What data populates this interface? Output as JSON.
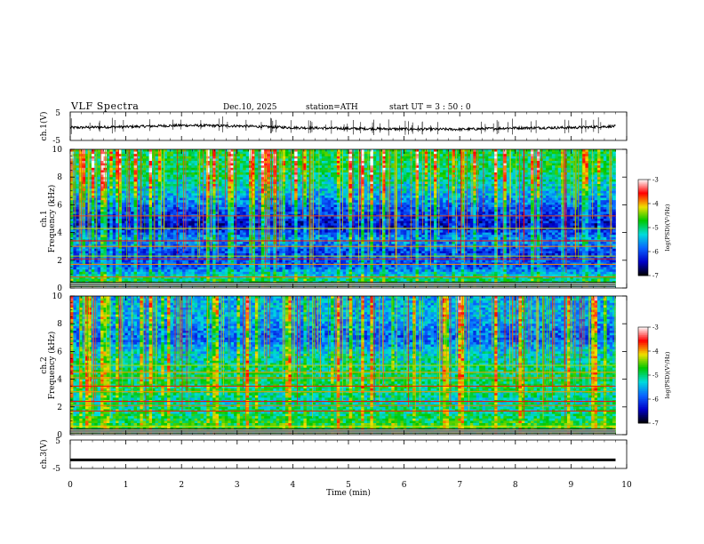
{
  "header": {
    "title": "VLF  Spectra",
    "date": "Dec.10, 2025",
    "station": "station=ATH",
    "start": "start  UT  =    3  : 50 : 0"
  },
  "panels": {
    "ch1_waveform": {
      "ylabel": "ch.1(V)",
      "yticks": [
        "5",
        "-5"
      ]
    },
    "ch1_spectrogram": {
      "ylabel_channel": "ch.1",
      "ylabel": "Frequency  (kHz)",
      "yticks": [
        "10",
        "8",
        "6",
        "4",
        "2",
        "0"
      ]
    },
    "ch2_spectrogram": {
      "ylabel_channel": "ch.2",
      "ylabel": "Frequency  (kHz)",
      "yticks": [
        "10",
        "8",
        "6",
        "4",
        "2",
        "0"
      ]
    },
    "ch3_waveform": {
      "ylabel": "ch.3(V)",
      "yticks": [
        "5",
        "-5"
      ]
    }
  },
  "xaxis": {
    "label": "Time  (min)",
    "ticks": [
      "0",
      "1",
      "2",
      "3",
      "4",
      "5",
      "6",
      "7",
      "8",
      "9",
      "10"
    ]
  },
  "colorbar": {
    "title": "log(PSD)(V²/Hz)",
    "ticks": [
      "-3",
      "-4",
      "-5",
      "-6",
      "-7"
    ],
    "colors": [
      "#000000",
      "#0000c8",
      "#0a64ff",
      "#00dcdc",
      "#00c800",
      "#f0e000",
      "#ff0000",
      "#ffffff"
    ]
  },
  "chart_data": [
    {
      "type": "line",
      "name": "ch.1(V)",
      "x": [
        0,
        1,
        2,
        3,
        4,
        5,
        6,
        7,
        8,
        9,
        9.8
      ],
      "y": [
        -0.5,
        -0.2,
        0.3,
        0.1,
        -0.5,
        -0.8,
        -1.0,
        -1.1,
        -0.6,
        -0.5,
        0.0
      ],
      "xlim": [
        0,
        10
      ],
      "ylim": [
        -5,
        5
      ],
      "data_end_min": 9.8
    },
    {
      "type": "heatmap",
      "name": "ch.1",
      "ylabel": "Frequency  (kHz)",
      "xlim": [
        0,
        10
      ],
      "ylim": [
        0,
        10
      ],
      "data_end_min": 9.8,
      "color_range": [
        -7,
        -3
      ],
      "bands_khz": [
        {
          "f": 8.5,
          "level": -4.9
        },
        {
          "f": 7.0,
          "level": -5.4
        },
        {
          "f": 5.8,
          "level": -5.9
        },
        {
          "f": 4.5,
          "level": -6.4
        },
        {
          "f": 3.5,
          "level": -5.6
        },
        {
          "f": 2.5,
          "level": -6.1
        },
        {
          "f": 1.5,
          "level": -5.9
        },
        {
          "f": 0.6,
          "level": -5.0
        }
      ],
      "lines_khz": [
        5.2,
        4.3,
        3.4,
        3.0,
        2.3,
        2.1,
        1.7,
        0.8
      ]
    },
    {
      "type": "heatmap",
      "name": "ch.2",
      "ylabel": "Frequency  (kHz)",
      "xlim": [
        0,
        10
      ],
      "ylim": [
        0,
        10
      ],
      "data_end_min": 9.8,
      "color_range": [
        -7,
        -3
      ],
      "bands_khz": [
        {
          "f": 8.5,
          "level": -5.5
        },
        {
          "f": 7.0,
          "level": -5.9
        },
        {
          "f": 5.8,
          "level": -5.3
        },
        {
          "f": 4.5,
          "level": -5.0
        },
        {
          "f": 3.5,
          "level": -4.9
        },
        {
          "f": 2.5,
          "level": -5.2
        },
        {
          "f": 1.5,
          "level": -5.0
        },
        {
          "f": 0.6,
          "level": -4.7
        }
      ],
      "lines_khz": [
        5.0,
        4.5,
        4.1,
        3.5,
        3.1,
        2.4,
        2.1,
        1.7,
        0.6
      ]
    },
    {
      "type": "line",
      "name": "ch.3(V)",
      "x": [
        0,
        9.8
      ],
      "y": [
        -2,
        -2
      ],
      "xlim": [
        0,
        10
      ],
      "ylim": [
        -5,
        5
      ],
      "data_end_min": 9.8
    }
  ]
}
